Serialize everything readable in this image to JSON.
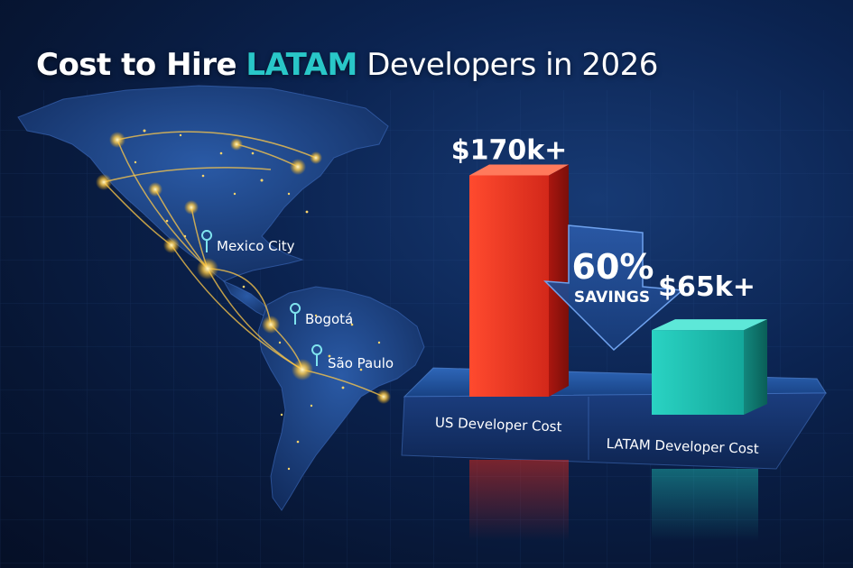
{
  "title": {
    "prefix": "Cost to Hire",
    "highlight": "LATAM",
    "suffix": "Developers in 2026"
  },
  "map": {
    "cities": [
      {
        "name": "Mexico City"
      },
      {
        "name": "Bogotá"
      },
      {
        "name": "São Paulo"
      }
    ]
  },
  "savings": {
    "percent": "60%",
    "label": "SAVINGS"
  },
  "colors": {
    "us_bar": "#e23422",
    "latam_bar": "#1fc2b3",
    "highlight": "#29c7c8",
    "background": "#0b2350"
  },
  "chart_data": {
    "type": "bar",
    "categories": [
      "US Developer Cost",
      "LATAM Developer Cost"
    ],
    "values": [
      170000,
      65000
    ],
    "value_labels": [
      "$170k+",
      "$65k+"
    ],
    "title": "Cost to Hire LATAM Developers in 2026",
    "xlabel": "",
    "ylabel": "",
    "ylim": [
      0,
      180000
    ],
    "grid": false,
    "legend": "none"
  }
}
